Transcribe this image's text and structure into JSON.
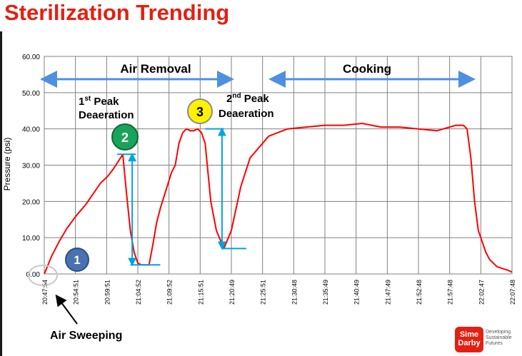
{
  "slide": {
    "title": "Sterilization Trending",
    "brand": {
      "name_line1": "Sime",
      "name_line2": "Darby",
      "tagline": [
        "Developing",
        "Sustainable",
        "Futures"
      ]
    }
  },
  "colors": {
    "title": "#e32012",
    "series": "#ff0000",
    "arrows": "#4f8fe0",
    "markers": "#00a3e0"
  },
  "chart_data": {
    "type": "line",
    "ylabel": "Pressure (psi)",
    "xlabel": "",
    "ylim": [
      0,
      60
    ],
    "y_ticks": [
      "0.00",
      "10.00",
      "20.00",
      "30.00",
      "40.00",
      "50.00",
      "60.00"
    ],
    "x_ticks": [
      "20:47:54",
      "20:54:51",
      "20:59:51",
      "21:04:52",
      "21:09:52",
      "21:15:51",
      "21:20:49",
      "21:25:51",
      "21:30:48",
      "21:35:49",
      "21:40:49",
      "21:47:49",
      "21:52:48",
      "21:57:48",
      "22:02:47",
      "22:07:48"
    ],
    "grid": true,
    "series": [
      {
        "x": [
          0,
          0.4,
          0.8,
          1.2,
          1.7,
          2.2,
          2.6,
          3.0,
          3.4,
          3.7,
          4.2,
          4.4,
          4.6,
          4.8,
          5.0,
          5.2,
          5.6,
          5.8,
          6.0,
          6.2,
          6.5,
          6.8,
          7.0,
          7.2,
          7.4,
          7.6,
          7.8,
          8.0,
          8.2,
          8.4,
          8.6,
          8.9,
          9.2,
          9.6,
          10.0,
          10.5,
          11.0,
          12.0,
          13.0,
          14.0,
          15.0,
          16.0,
          17.0,
          18.0,
          19.0,
          20.0,
          21.0,
          22.0,
          22.2,
          22.4,
          22.6,
          22.8,
          23.0,
          23.2,
          23.4,
          23.6,
          23.8,
          24.0,
          24.2,
          24.5,
          24.8,
          25.0
        ],
        "values": [
          0,
          5,
          9,
          12.5,
          16,
          19,
          22,
          25,
          27,
          29,
          33,
          22,
          12,
          6,
          3,
          2.5,
          2.5,
          8,
          14,
          18,
          23,
          28,
          30,
          36,
          39,
          40,
          39.5,
          39.5,
          40,
          39,
          36,
          20,
          12,
          7,
          12,
          24,
          32,
          38,
          40,
          40.5,
          41,
          41,
          41.5,
          40.5,
          40.5,
          40,
          39.5,
          41,
          41,
          41,
          40,
          32,
          20,
          12,
          9,
          6,
          4,
          3,
          2,
          1.5,
          1,
          0.5
        ]
      }
    ],
    "annotations": [
      {
        "id": "1",
        "text": "1"
      },
      {
        "id": "2",
        "text": "2",
        "label": "Deaeration",
        "label_prefix": "1",
        "label_sup": "st",
        "label_suffix": " Peak"
      },
      {
        "id": "3",
        "text": "3",
        "label": "Deaeration",
        "label_prefix": "2",
        "label_sup": "nd",
        "label_suffix": " Peak"
      }
    ],
    "phases": [
      {
        "name": "Air Removal"
      },
      {
        "name": "Cooking"
      }
    ],
    "callout": "Air Sweeping"
  }
}
